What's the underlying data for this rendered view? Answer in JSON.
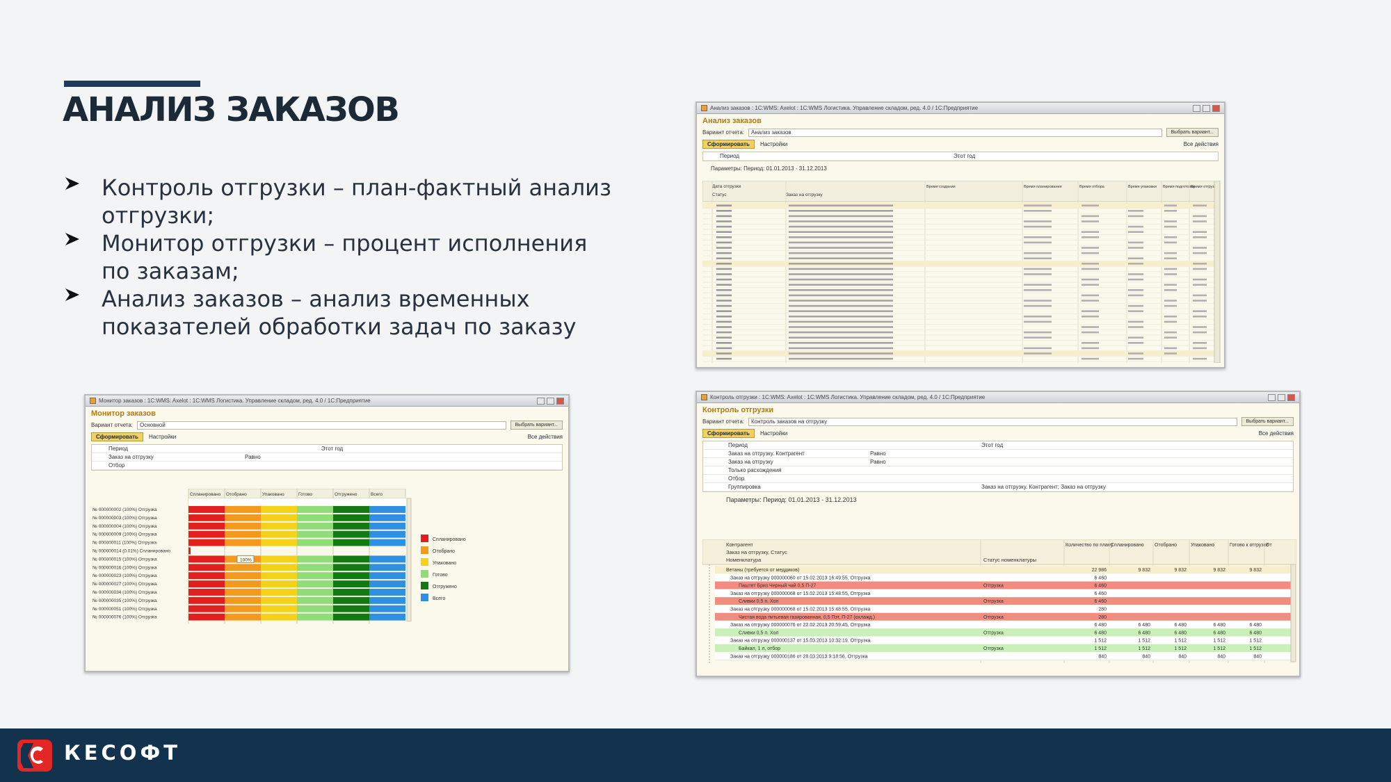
{
  "slide": {
    "title": "АНАЛИЗ ЗАКАЗОВ",
    "bullets": [
      "Контроль отгрузки – план-фактный анализ отгрузки;",
      "Монитор отгрузки – процент исполнения  по заказам;",
      "Анализ заказов – анализ временных показателей обработки задач по заказу"
    ]
  },
  "colors": {
    "footer_bg": "#13324d",
    "accent_bar": "#1e3c58",
    "logo_red": "#e32626",
    "planned": "#e21f1f",
    "picked": "#f39a1e",
    "packed": "#f5d21a",
    "ready": "#8fdc79",
    "shipped": "#137a13",
    "all": "#2f8fe0",
    "row_red": "#f28b80",
    "row_green": "#c8f0b8"
  },
  "footer": {
    "brand": "КЕСОФТ",
    "logo_icon": "kesoft-logo-icon"
  },
  "monitor": {
    "window_title": "Монитор заказов : 1С:WMS: Axelot : 1С:WMS Логистика. Управление складом, ред. 4.0 / 1С:Предприятие",
    "form_title": "Монитор заказов",
    "variant_label": "Вариант отчета:",
    "variant_value": "Основной",
    "choose_button": "Выбрать вариант...",
    "generate_button": "Сформировать",
    "settings_button": "Настройки",
    "all_actions": "Все действия",
    "settings_rows": [
      {
        "name": "Период",
        "cond": "",
        "value": "Этот год"
      },
      {
        "name": "Заказ на отгрузку",
        "cond": "Равно",
        "value": ""
      },
      {
        "name": "Отбор",
        "cond": "",
        "value": ""
      }
    ],
    "columns": [
      "Спланировано",
      "Отобрано",
      "Упаковано",
      "Готово",
      "Отгружено",
      "Всего"
    ],
    "rows": [
      {
        "label": "№ 000000002 (100%) Отгрузка",
        "full": true
      },
      {
        "label": "№ 000000003 (100%) Отгрузка",
        "full": true
      },
      {
        "label": "№ 000000004 (100%) Отгрузка",
        "full": true
      },
      {
        "label": "№ 000000009 (100%) Отгрузка",
        "full": true
      },
      {
        "label": "№ 000000011 (100%) Отгрузка",
        "full": true
      },
      {
        "label": "№ 000000014 (0.01%) Спланировано",
        "full": false
      },
      {
        "label": "№ 000000015 (100%) Отгрузка",
        "full": true
      },
      {
        "label": "№ 000000016 (100%) Отгрузка",
        "full": true
      },
      {
        "label": "№ 000000023 (100%) Отгрузка",
        "full": true
      },
      {
        "label": "№ 000000027 (100%) Отгрузка",
        "full": true
      },
      {
        "label": "№ 000000034 (100%) Отгрузка",
        "full": true
      },
      {
        "label": "№ 000000035 (100%) Отгрузка",
        "full": true
      },
      {
        "label": "№ 000000051 (100%) Отгрузка",
        "full": true
      },
      {
        "label": "№ 000000076 (100%) Отгрузка",
        "full": true
      }
    ],
    "tooltip": "100%",
    "legend": [
      "Спланировано",
      "Отобрано",
      "Упаковано",
      "Готово",
      "Отгружено",
      "Всего"
    ]
  },
  "orders": {
    "window_title": "Анализ заказов : 1С:WMS: Axelot : 1С:WMS Логистика. Управление складом, ред. 4.0 / 1С:Предприятие",
    "form_title": "Анализ заказов",
    "variant_label": "Вариант отчета:",
    "variant_value": "Анализ заказов",
    "choose_button": "Выбрать вариант...",
    "generate_button": "Сформировать",
    "settings_button": "Настройки",
    "all_actions": "Все действия",
    "settings_rows": [
      {
        "name": "Период",
        "value": "Этот год"
      }
    ],
    "params": "Параметры:     Период: 01.01.2013 - 31.12.2013",
    "columns": [
      "Дата отгрузки",
      "Статус",
      "Заказ на отгрузку",
      "Время создания",
      "Время планирования",
      "Время отбора",
      "Время упаковки",
      "Время подготовки",
      "Время отгрузки"
    ]
  },
  "shipment": {
    "window_title": "Контроль отгрузки : 1С:WMS: Axelot : 1С:WMS Логистика. Управление складом, ред. 4.0 / 1С:Предприятие",
    "form_title": "Контроль отгрузки",
    "variant_label": "Вариант отчета:",
    "variant_value": "Контроль заказов на отгрузку",
    "choose_button": "Выбрать вариант...",
    "generate_button": "Сформировать",
    "settings_button": "Настройки",
    "all_actions": "Все действия",
    "settings_rows": [
      {
        "name": "Период",
        "cond": "",
        "value": "Этот год"
      },
      {
        "name": "Заказ на отгрузку. Контрагент",
        "cond": "Равно",
        "value": ""
      },
      {
        "name": "Заказ на отгрузку",
        "cond": "Равно",
        "value": ""
      },
      {
        "name": "Только расхождения",
        "cond": "",
        "value": ""
      },
      {
        "name": "Отбор",
        "cond": "",
        "value": ""
      },
      {
        "name": "Группировка",
        "cond": "",
        "value": "Заказ на отгрузку. Контрагент; Заказ на отгрузку"
      }
    ],
    "params": "Параметры:     Период: 01.01.2013 - 31.12.2013",
    "header_left": [
      "Контрагент",
      "Заказ на отгрузку, Статус",
      "Номенклатура"
    ],
    "header_status": "Статус номенклатуры",
    "header_cols": [
      "Количество по плану",
      "Спланировано",
      "Отобрано",
      "Упаковано",
      "Готово к отгрузке",
      "От"
    ],
    "rows": [
      {
        "text": "Ветаны (требуется от меддиков)",
        "status": "",
        "vals": [
          "22 986",
          "9 832",
          "9 832",
          "9 832",
          "9 832"
        ],
        "kind": "group"
      },
      {
        "text": "Заказ на отгрузку 000000060 от 15.02.2013 16:49:55, Отгрузка",
        "status": "",
        "vals": [
          "6 460",
          "",
          "",
          "",
          ""
        ],
        "kind": "plain"
      },
      {
        "text": "Паштет Бриз Черный чай 0,5 П-27",
        "status": "Отгрузка",
        "vals": [
          "6 460",
          "",
          "",
          "",
          ""
        ],
        "kind": "red"
      },
      {
        "text": "Заказ на отгрузку 000000068 от 15.02.2013 15:48:55, Отгрузка",
        "status": "",
        "vals": [
          "6 460",
          "",
          "",
          "",
          ""
        ],
        "kind": "plain"
      },
      {
        "text": "Сливки 0,5 п. Хол",
        "status": "Отгрузка",
        "vals": [
          "6 460",
          "",
          "",
          "",
          ""
        ],
        "kind": "red"
      },
      {
        "text": "Заказ на отгрузку 000000068 от 15.02.2013 15:48:55, Отгрузка",
        "status": "",
        "vals": [
          "280",
          "",
          "",
          "",
          ""
        ],
        "kind": "plain"
      },
      {
        "text": "Чистая вода питьевая газированная, 0,5 Пэт, П-27 (охлажд.)",
        "status": "Отгрузка",
        "vals": [
          "280",
          "",
          "",
          "",
          ""
        ],
        "kind": "red"
      },
      {
        "text": "Заказ на отгрузку 000000076 от 22.02.2013 20:59:45, Отгрузка",
        "status": "",
        "vals": [
          "6 480",
          "6 480",
          "6 480",
          "6 480",
          "6 480"
        ],
        "kind": "plain"
      },
      {
        "text": "Сливки 0,5 п. Хол",
        "status": "Отгрузка",
        "vals": [
          "6 480",
          "6 480",
          "6 480",
          "6 480",
          "6 480"
        ],
        "kind": "green"
      },
      {
        "text": "Заказ на отгрузку 000000137 от 15.03.2013 10:32:19, Отгрузка",
        "status": "",
        "vals": [
          "1 512",
          "1 512",
          "1 512",
          "1 512",
          "1 512"
        ],
        "kind": "plain"
      },
      {
        "text": "Байкал, 1 л, отбор",
        "status": "Отгрузка",
        "vals": [
          "1 512",
          "1 512",
          "1 512",
          "1 512",
          "1 512"
        ],
        "kind": "green"
      },
      {
        "text": "Заказ на отгрузку 000000186 от 28.03.2013 9:18:56, Отгрузка",
        "status": "",
        "vals": [
          "840",
          "840",
          "840",
          "840",
          "840"
        ],
        "kind": "plain"
      }
    ]
  }
}
